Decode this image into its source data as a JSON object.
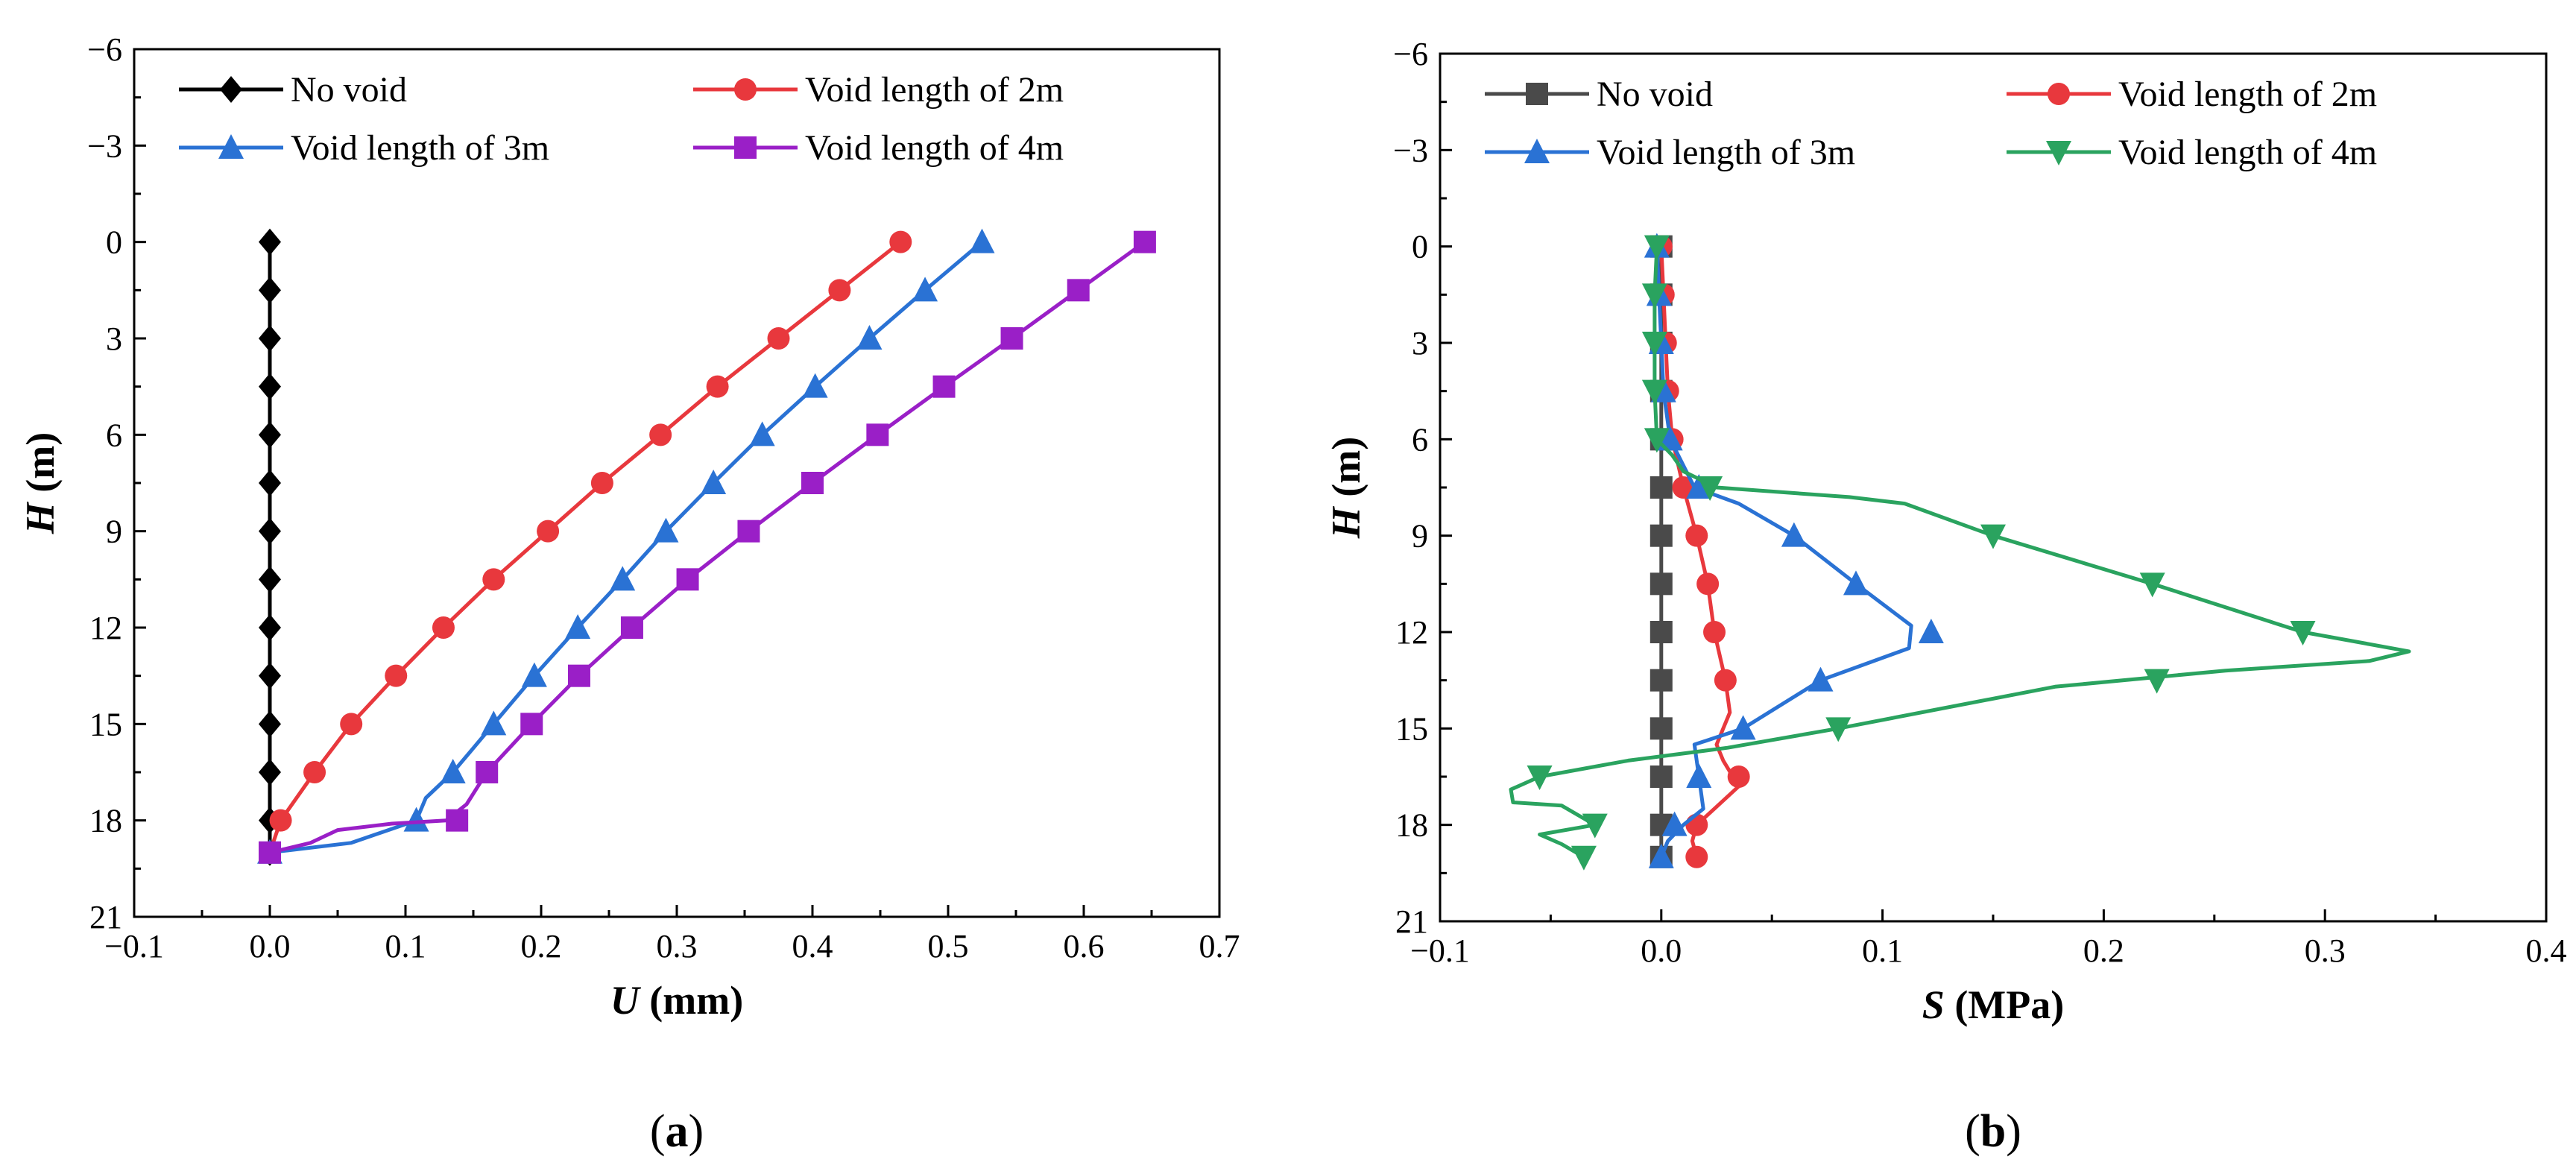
{
  "chart_data": [
    {
      "type": "line",
      "panel_label": "a",
      "xlabel_var": "U",
      "xlabel_unit": " (mm)",
      "ylabel_var": "H",
      "ylabel_unit": " (m)",
      "xlim": [
        -0.1,
        0.7
      ],
      "ylim": [
        -6,
        21
      ],
      "y_inverted": true,
      "xticks": [
        -0.1,
        0.0,
        0.1,
        0.2,
        0.3,
        0.4,
        0.5,
        0.6,
        0.7
      ],
      "xtick_labels": [
        "−0.1",
        "0.0",
        "0.1",
        "0.2",
        "0.3",
        "0.4",
        "0.5",
        "0.6",
        "0.7"
      ],
      "yticks": [
        -6,
        -3,
        0,
        3,
        6,
        9,
        12,
        15,
        18,
        21
      ],
      "ytick_labels": [
        "−6",
        "−3",
        "0",
        "3",
        "6",
        "9",
        "12",
        "15",
        "18",
        "21"
      ],
      "legend_placement": "top",
      "series": [
        {
          "name": "No void",
          "color": "#000000",
          "marker": "diamond",
          "line": [
            [
              0,
              0
            ],
            [
              0,
              19
            ]
          ],
          "markers": [
            [
              0,
              0
            ],
            [
              0,
              1.5
            ],
            [
              0,
              3
            ],
            [
              0,
              4.5
            ],
            [
              0,
              6
            ],
            [
              0,
              7.5
            ],
            [
              0,
              9
            ],
            [
              0,
              10.5
            ],
            [
              0,
              12
            ],
            [
              0,
              13.5
            ],
            [
              0,
              15
            ],
            [
              0,
              16.5
            ],
            [
              0,
              18
            ],
            [
              0,
              19
            ]
          ]
        },
        {
          "name": "Void length of 2m",
          "color": "#e8383d",
          "marker": "circle",
          "line": [
            [
              0.465,
              0
            ],
            [
              0.42,
              1.5
            ],
            [
              0.375,
              3
            ],
            [
              0.33,
              4.5
            ],
            [
              0.288,
              6
            ],
            [
              0.245,
              7.5
            ],
            [
              0.205,
              9
            ],
            [
              0.165,
              10.5
            ],
            [
              0.128,
              12
            ],
            [
              0.093,
              13.5
            ],
            [
              0.06,
              15
            ],
            [
              0.033,
              16.5
            ],
            [
              0.008,
              18
            ],
            [
              0,
              19
            ]
          ],
          "markers": [
            [
              0.465,
              0
            ],
            [
              0.42,
              1.5
            ],
            [
              0.375,
              3
            ],
            [
              0.33,
              4.5
            ],
            [
              0.288,
              6
            ],
            [
              0.245,
              7.5
            ],
            [
              0.205,
              9
            ],
            [
              0.165,
              10.5
            ],
            [
              0.128,
              12
            ],
            [
              0.093,
              13.5
            ],
            [
              0.06,
              15
            ],
            [
              0.033,
              16.5
            ],
            [
              0.008,
              18
            ],
            [
              0,
              19
            ]
          ]
        },
        {
          "name": "Void length of 3m",
          "color": "#2a72d4",
          "marker": "triangle-up",
          "line": [
            [
              0.525,
              0
            ],
            [
              0.483,
              1.5
            ],
            [
              0.442,
              3
            ],
            [
              0.402,
              4.5
            ],
            [
              0.363,
              6
            ],
            [
              0.327,
              7.5
            ],
            [
              0.292,
              9
            ],
            [
              0.26,
              10.5
            ],
            [
              0.227,
              12
            ],
            [
              0.195,
              13.5
            ],
            [
              0.165,
              15
            ],
            [
              0.135,
              16.5
            ],
            [
              0.115,
              17.3
            ],
            [
              0.108,
              18
            ],
            [
              0.06,
              18.7
            ],
            [
              0,
              19
            ]
          ],
          "markers": [
            [
              0.525,
              0
            ],
            [
              0.483,
              1.5
            ],
            [
              0.442,
              3
            ],
            [
              0.402,
              4.5
            ],
            [
              0.363,
              6
            ],
            [
              0.327,
              7.5
            ],
            [
              0.292,
              9
            ],
            [
              0.26,
              10.5
            ],
            [
              0.227,
              12
            ],
            [
              0.195,
              13.5
            ],
            [
              0.165,
              15
            ],
            [
              0.135,
              16.5
            ],
            [
              0.108,
              18
            ],
            [
              0,
              19
            ]
          ]
        },
        {
          "name": "Void length of 4m",
          "color": "#9a1fc7",
          "marker": "square",
          "line": [
            [
              0.645,
              0
            ],
            [
              0.596,
              1.5
            ],
            [
              0.547,
              3
            ],
            [
              0.497,
              4.5
            ],
            [
              0.448,
              6
            ],
            [
              0.4,
              7.5
            ],
            [
              0.353,
              9
            ],
            [
              0.308,
              10.5
            ],
            [
              0.267,
              12
            ],
            [
              0.228,
              13.5
            ],
            [
              0.193,
              15
            ],
            [
              0.16,
              16.5
            ],
            [
              0.145,
              17.5
            ],
            [
              0.13,
              18
            ],
            [
              0.09,
              18.1
            ],
            [
              0.05,
              18.3
            ],
            [
              0.03,
              18.7
            ],
            [
              0,
              19
            ]
          ],
          "markers": [
            [
              0.645,
              0
            ],
            [
              0.596,
              1.5
            ],
            [
              0.547,
              3
            ],
            [
              0.497,
              4.5
            ],
            [
              0.448,
              6
            ],
            [
              0.4,
              7.5
            ],
            [
              0.353,
              9
            ],
            [
              0.308,
              10.5
            ],
            [
              0.267,
              12
            ],
            [
              0.228,
              13.5
            ],
            [
              0.193,
              15
            ],
            [
              0.16,
              16.5
            ],
            [
              0.138,
              18
            ],
            [
              0,
              19
            ]
          ]
        }
      ]
    },
    {
      "type": "line",
      "panel_label": "b",
      "xlabel_var": "S",
      "xlabel_unit": " (MPa)",
      "ylabel_var": "H",
      "ylabel_unit": " (m)",
      "xlim": [
        -0.1,
        0.4
      ],
      "ylim": [
        -6,
        21
      ],
      "y_inverted": true,
      "xticks": [
        -0.1,
        0.0,
        0.1,
        0.2,
        0.3,
        0.4
      ],
      "xtick_labels": [
        "−0.1",
        "0.0",
        "0.1",
        "0.2",
        "0.3",
        "0.4"
      ],
      "yticks": [
        -6,
        -3,
        0,
        3,
        6,
        9,
        12,
        15,
        18,
        21
      ],
      "ytick_labels": [
        "−6",
        "−3",
        "0",
        "3",
        "6",
        "9",
        "12",
        "15",
        "18",
        "21"
      ],
      "legend_placement": "top",
      "series": [
        {
          "name": "No void",
          "color": "#4a4a4a",
          "marker": "square",
          "line": [
            [
              0,
              0
            ],
            [
              0,
              19
            ]
          ],
          "markers": [
            [
              0,
              0
            ],
            [
              0,
              1.5
            ],
            [
              0,
              3
            ],
            [
              0,
              4.5
            ],
            [
              0,
              6
            ],
            [
              0,
              7.5
            ],
            [
              0,
              9
            ],
            [
              0,
              10.5
            ],
            [
              0,
              12
            ],
            [
              0,
              13.5
            ],
            [
              0,
              15
            ],
            [
              0,
              16.5
            ],
            [
              0,
              18
            ],
            [
              0,
              19
            ]
          ]
        },
        {
          "name": "Void length of 2m",
          "color": "#e8383d",
          "marker": "circle",
          "line": [
            [
              0,
              0
            ],
            [
              0.001,
              1.5
            ],
            [
              0.002,
              3
            ],
            [
              0.003,
              4.5
            ],
            [
              0.005,
              6
            ],
            [
              0.01,
              7.5
            ],
            [
              0.016,
              9
            ],
            [
              0.021,
              10.5
            ],
            [
              0.024,
              12
            ],
            [
              0.029,
              13.5
            ],
            [
              0.031,
              14.5
            ],
            [
              0.028,
              15
            ],
            [
              0.025,
              15.5
            ],
            [
              0.028,
              16
            ],
            [
              0.035,
              16.8
            ],
            [
              0.024,
              17.5
            ],
            [
              0.016,
              18
            ],
            [
              0.014,
              18.5
            ],
            [
              0.016,
              19
            ]
          ],
          "markers": [
            [
              0,
              0
            ],
            [
              0.001,
              1.5
            ],
            [
              0.002,
              3
            ],
            [
              0.003,
              4.5
            ],
            [
              0.005,
              6
            ],
            [
              0.01,
              7.5
            ],
            [
              0.016,
              9
            ],
            [
              0.021,
              10.5
            ],
            [
              0.024,
              12
            ],
            [
              0.029,
              13.5
            ],
            [
              0.035,
              16.5
            ],
            [
              0.016,
              18
            ],
            [
              0.016,
              19
            ]
          ]
        },
        {
          "name": "Void length of 3m",
          "color": "#2a72d4",
          "marker": "triangle-up",
          "line": [
            [
              -0.002,
              0
            ],
            [
              -0.001,
              1.5
            ],
            [
              0,
              3
            ],
            [
              0.001,
              4.5
            ],
            [
              0.004,
              6
            ],
            [
              0.015,
              7.5
            ],
            [
              0.035,
              8
            ],
            [
              0.06,
              9
            ],
            [
              0.088,
              10.5
            ],
            [
              0.113,
              11.8
            ],
            [
              0.112,
              12.5
            ],
            [
              0.072,
              13.5
            ],
            [
              0.037,
              15
            ],
            [
              0.015,
              15.5
            ],
            [
              0.017,
              16.5
            ],
            [
              0.019,
              17.5
            ],
            [
              0.01,
              18
            ],
            [
              0.003,
              18.5
            ],
            [
              0,
              19
            ]
          ],
          "markers": [
            [
              -0.002,
              0
            ],
            [
              -0.001,
              1.5
            ],
            [
              0,
              3
            ],
            [
              0.001,
              4.5
            ],
            [
              0.004,
              6
            ],
            [
              0.017,
              7.5
            ],
            [
              0.06,
              9
            ],
            [
              0.088,
              10.5
            ],
            [
              0.122,
              12
            ],
            [
              0.072,
              13.5
            ],
            [
              0.037,
              15
            ],
            [
              0.017,
              16.5
            ],
            [
              0.006,
              18
            ],
            [
              0,
              19
            ]
          ]
        },
        {
          "name": "Void length of 4m",
          "color": "#2aa35f",
          "marker": "triangle-down",
          "line": [
            [
              -0.002,
              0
            ],
            [
              -0.003,
              1.5
            ],
            [
              -0.003,
              3
            ],
            [
              -0.003,
              4.5
            ],
            [
              -0.002,
              6
            ],
            [
              0.005,
              6.5
            ],
            [
              0.01,
              7
            ],
            [
              0.025,
              7.5
            ],
            [
              0.085,
              7.8
            ],
            [
              0.11,
              8
            ],
            [
              0.15,
              9
            ],
            [
              0.222,
              10.5
            ],
            [
              0.29,
              12
            ],
            [
              0.338,
              12.6
            ],
            [
              0.32,
              12.9
            ],
            [
              0.255,
              13.2
            ],
            [
              0.178,
              13.7
            ],
            [
              0.08,
              15
            ],
            [
              0.03,
              15.6
            ],
            [
              -0.015,
              16
            ],
            [
              -0.055,
              16.5
            ],
            [
              -0.068,
              16.9
            ],
            [
              -0.067,
              17.3
            ],
            [
              -0.045,
              17.4
            ],
            [
              -0.03,
              18
            ],
            [
              -0.055,
              18.3
            ],
            [
              -0.045,
              18.6
            ],
            [
              -0.035,
              19
            ]
          ],
          "markers": [
            [
              -0.002,
              0
            ],
            [
              -0.003,
              1.5
            ],
            [
              -0.003,
              3
            ],
            [
              -0.003,
              4.5
            ],
            [
              -0.002,
              6
            ],
            [
              0.022,
              7.5
            ],
            [
              0.15,
              9
            ],
            [
              0.222,
              10.5
            ],
            [
              0.29,
              12
            ],
            [
              0.224,
              13.5
            ],
            [
              0.08,
              15
            ],
            [
              -0.055,
              16.5
            ],
            [
              -0.03,
              18
            ],
            [
              -0.035,
              19
            ]
          ]
        }
      ]
    }
  ]
}
